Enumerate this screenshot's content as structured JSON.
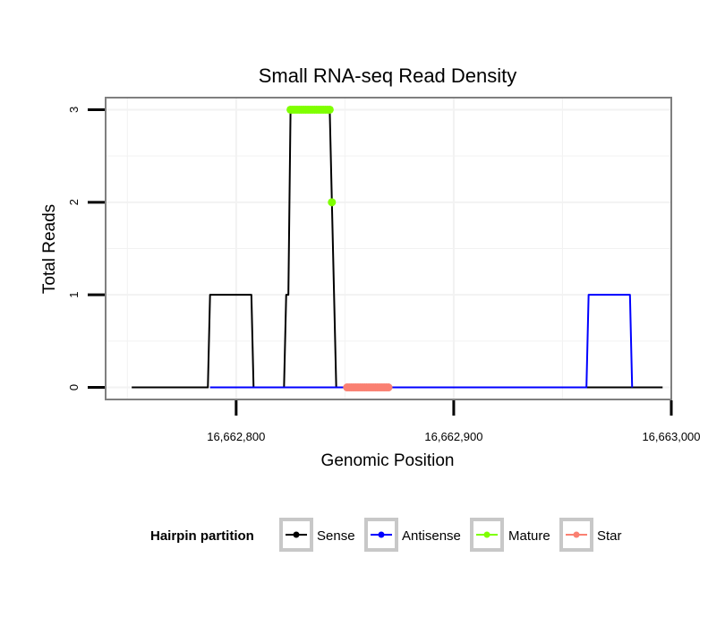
{
  "chart_data": {
    "type": "line",
    "title": "Small RNA-seq Read Density",
    "xlabel": "Genomic Position",
    "ylabel": "Total Reads",
    "xlim": [
      16662740,
      16663000
    ],
    "ylim": [
      -0.13,
      3.13
    ],
    "x_ticks": [
      16662800,
      16662900,
      16663000
    ],
    "x_tick_labels": [
      "16,662,800",
      "16,662,900",
      "16,663,000"
    ],
    "y_ticks": [
      0,
      1,
      2,
      3
    ],
    "y_tick_labels": [
      "0",
      "1",
      "2",
      "3"
    ],
    "grid": true,
    "legend": {
      "title": "Hairpin partition",
      "position": "bottom",
      "entries": [
        "Sense",
        "Antisense",
        "Mature",
        "Star"
      ]
    },
    "series": [
      {
        "name": "Sense",
        "color": "#000000",
        "style": "line",
        "x": [
          16662752,
          16662787,
          16662788,
          16662807,
          16662808,
          16662822,
          16662823,
          16662824,
          16662825,
          16662843,
          16662844,
          16662845,
          16662846,
          16662996
        ],
        "y": [
          0,
          0,
          1,
          1,
          0,
          0,
          1,
          1,
          3,
          3,
          2,
          1,
          0,
          0
        ]
      },
      {
        "name": "Antisense",
        "color": "#0000ff",
        "style": "line",
        "x": [
          16662788,
          16662807,
          16662822,
          16662846,
          16662961,
          16662962,
          16662981,
          16662982
        ],
        "y": [
          0,
          0,
          0,
          0,
          0,
          1,
          1,
          0
        ]
      },
      {
        "name": "Mature",
        "color": "#7fff00",
        "style": "points",
        "x": [
          16662825,
          16662826,
          16662827,
          16662828,
          16662829,
          16662830,
          16662831,
          16662832,
          16662833,
          16662834,
          16662835,
          16662836,
          16662837,
          16662838,
          16662839,
          16662840,
          16662841,
          16662842,
          16662843,
          16662844
        ],
        "y": [
          3,
          3,
          3,
          3,
          3,
          3,
          3,
          3,
          3,
          3,
          3,
          3,
          3,
          3,
          3,
          3,
          3,
          3,
          3,
          2
        ]
      },
      {
        "name": "Star",
        "color": "#fa8072",
        "style": "points",
        "x": [
          16662851,
          16662852,
          16662853,
          16662854,
          16662855,
          16662856,
          16662857,
          16662858,
          16662859,
          16662860,
          16662861,
          16662862,
          16662863,
          16662864,
          16662865,
          16662866,
          16662867,
          16662868,
          16662869,
          16662870
        ],
        "y": [
          0,
          0,
          0,
          0,
          0,
          0,
          0,
          0,
          0,
          0,
          0,
          0,
          0,
          0,
          0,
          0,
          0,
          0,
          0,
          0
        ]
      }
    ]
  }
}
